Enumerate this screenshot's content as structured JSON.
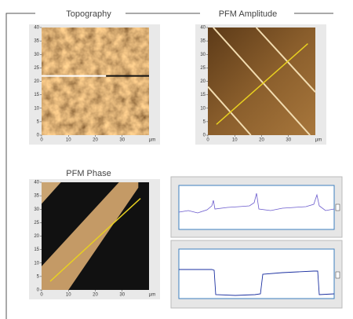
{
  "headings": {
    "topography": "Topography",
    "amplitude": "PFM Amplitude",
    "phase": "PFM Phase"
  },
  "images": [
    {
      "xlim": [
        0,
        40
      ],
      "ylim": [
        0,
        40
      ],
      "xticks": [
        0,
        10,
        20,
        30
      ],
      "yticks": [
        0,
        5,
        10,
        15,
        20,
        25,
        30,
        35,
        40
      ],
      "x_unit": "µm"
    },
    {
      "xlim": [
        0,
        40
      ],
      "ylim": [
        0,
        40
      ],
      "xticks": [
        0,
        10,
        20,
        30
      ],
      "yticks": [
        0,
        5,
        10,
        15,
        20,
        25,
        30,
        35,
        40
      ],
      "x_unit": "µm"
    },
    {
      "xlim": [
        0,
        40
      ],
      "ylim": [
        0,
        40
      ],
      "xticks": [
        0,
        10,
        20,
        30
      ],
      "yticks": [
        0,
        5,
        10,
        15,
        20,
        25,
        30,
        35,
        40
      ],
      "x_unit": "µm"
    }
  ]
}
